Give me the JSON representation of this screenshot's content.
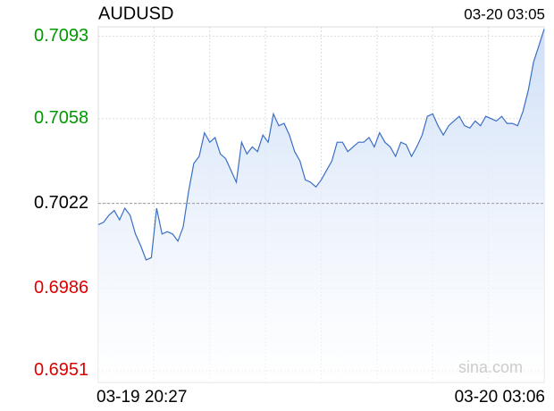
{
  "chart_data": {
    "type": "line",
    "title": "AUDUSD",
    "timestamp": "03-20 03:05",
    "watermark": "sina.com",
    "x": [
      "03-19 20:27",
      null,
      null,
      null,
      null,
      null,
      null,
      null,
      null,
      null,
      null,
      null,
      null,
      null,
      null,
      null,
      null,
      null,
      null,
      null,
      null,
      null,
      null,
      null,
      null,
      null,
      null,
      null,
      null,
      null,
      null,
      null,
      null,
      null,
      null,
      null,
      null,
      null,
      null,
      null,
      null,
      null,
      null,
      null,
      null,
      null,
      null,
      null,
      null,
      null,
      null,
      null,
      null,
      null,
      null,
      null,
      null,
      null,
      null,
      null,
      null,
      null,
      null,
      null,
      null,
      null,
      null,
      null,
      null,
      null,
      null,
      null,
      null,
      null,
      null,
      null,
      null,
      null,
      null,
      null,
      null,
      null,
      null,
      null,
      "03-20 03:06"
    ],
    "series": [
      {
        "color": "#3a6fc4",
        "fill": "#d4e3f8",
        "values": [
          0.7013,
          0.7014,
          0.7017,
          0.7019,
          0.7015,
          0.702,
          0.7017,
          0.7009,
          0.7004,
          0.6998,
          0.6999,
          0.702,
          0.7009,
          0.701,
          0.7009,
          0.7006,
          0.7012,
          0.7027,
          0.7039,
          0.7042,
          0.7052,
          0.7048,
          0.705,
          0.7043,
          0.7041,
          0.7036,
          0.7031,
          0.7048,
          0.7043,
          0.7046,
          0.7044,
          0.7051,
          0.7048,
          0.706,
          0.7055,
          0.7056,
          0.7051,
          0.7044,
          0.704,
          0.7032,
          0.7031,
          0.7029,
          0.7032,
          0.7036,
          0.704,
          0.7048,
          0.7048,
          0.7044,
          0.7046,
          0.7048,
          0.7048,
          0.705,
          0.7046,
          0.7052,
          0.7048,
          0.7046,
          0.7042,
          0.7048,
          0.7047,
          0.7042,
          0.7046,
          0.7051,
          0.7059,
          0.706,
          0.7055,
          0.7051,
          0.7055,
          0.7057,
          0.7059,
          0.7055,
          0.7054,
          0.7057,
          0.7055,
          0.7059,
          0.7058,
          0.7057,
          0.7059,
          0.7056,
          0.7056,
          0.7055,
          0.7061,
          0.707,
          0.7082,
          0.7089,
          0.7096
        ]
      }
    ],
    "ylim": [
      0.6946,
      0.7097
    ],
    "yticks": [
      0.7093,
      0.7058,
      0.7022,
      0.6986,
      0.6951
    ],
    "ytick_colors": [
      "#009900",
      "#009900",
      "#000000",
      "#dd0000",
      "#dd0000"
    ],
    "reference_line": 0.7022,
    "grid": true
  }
}
